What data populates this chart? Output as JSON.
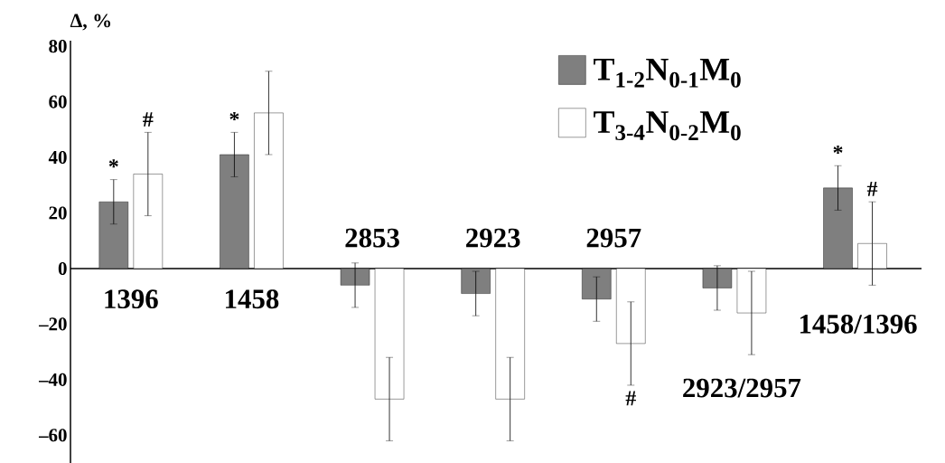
{
  "chart_data": {
    "type": "bar",
    "ylabel": "Δ, %",
    "categories": [
      "1396",
      "1458",
      "2853",
      "2923",
      "2957",
      "2923/2957",
      "1458/1396"
    ],
    "series": [
      {
        "name": "T$_{1-2}$N$_{0-1}$M$_{0}$",
        "color": "#7f7f7f",
        "values": [
          24,
          41,
          -6,
          -9,
          -11,
          -7,
          29
        ],
        "errors": [
          8,
          8,
          8,
          8,
          8,
          8,
          8
        ]
      },
      {
        "name": "T$_{3-4}$N$_{0-2}$M$_{0}$",
        "color": "#ffffff",
        "values": [
          34,
          56,
          -47,
          -47,
          -27,
          -16,
          9
        ],
        "errors": [
          15,
          15,
          15,
          15,
          15,
          15,
          15
        ]
      }
    ],
    "ylim": [
      -70,
      82
    ],
    "yticks": [
      {
        "value": -60,
        "label": "–60"
      },
      {
        "value": -40,
        "label": "–40"
      },
      {
        "value": -20,
        "label": "–20"
      },
      0,
      20,
      40,
      60,
      80
    ],
    "annotations": [
      "*",
      "#",
      "*",
      "*",
      "#",
      "#"
    ],
    "legend": "top right",
    "grid": false
  }
}
